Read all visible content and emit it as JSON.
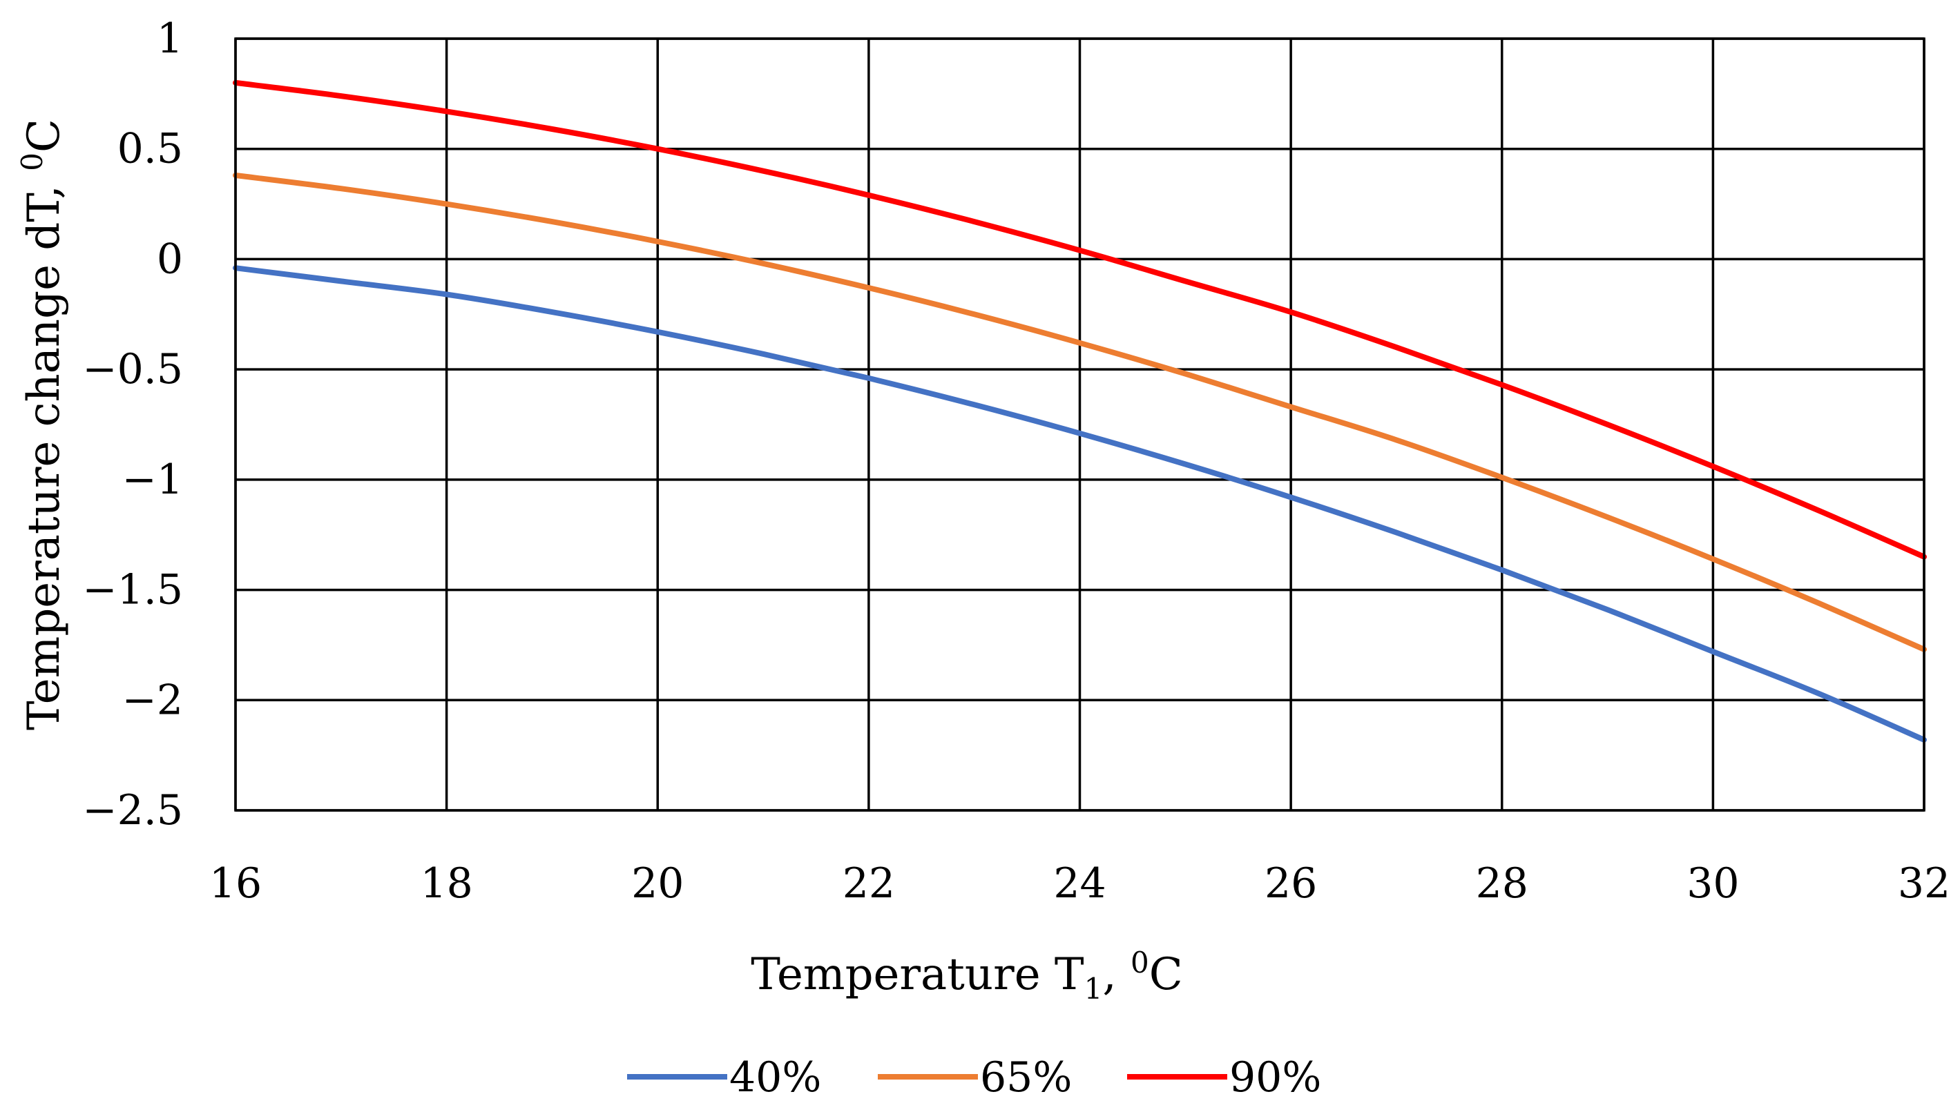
{
  "chart_data": {
    "type": "line",
    "title": "",
    "xlabel": {
      "main": "Temperature T",
      "sub": "1",
      "sep": ", ",
      "sup": "0",
      "unit": "C"
    },
    "ylabel": {
      "main": "Temperature change dT, ",
      "sup": "0",
      "unit": "C"
    },
    "xlim": [
      16,
      32
    ],
    "ylim": [
      -2.5,
      1
    ],
    "x_ticks": [
      16,
      18,
      20,
      22,
      24,
      26,
      28,
      30,
      32
    ],
    "x_tick_labels": [
      "16",
      "18",
      "20",
      "22",
      "24",
      "26",
      "28",
      "30",
      "32"
    ],
    "y_ticks": [
      1,
      0.5,
      0,
      -0.5,
      -1,
      -1.5,
      -2,
      -2.5
    ],
    "y_tick_labels": [
      "1",
      "0.5",
      "0",
      "−0.5",
      "−1",
      "−1.5",
      "−2",
      "−2.5"
    ],
    "grid": true,
    "legend_position": "bottom",
    "x": [
      16,
      17,
      18,
      19,
      20,
      21,
      22,
      23,
      24,
      25,
      26,
      27,
      28,
      29,
      30,
      31,
      32
    ],
    "series": [
      {
        "name": "40%",
        "color": "#4472C4",
        "values": [
          -0.04,
          -0.1,
          -0.16,
          -0.24,
          -0.33,
          -0.43,
          -0.54,
          -0.66,
          -0.79,
          -0.93,
          -1.08,
          -1.24,
          -1.41,
          -1.59,
          -1.78,
          -1.97,
          -2.18
        ]
      },
      {
        "name": "65%",
        "color": "#ED7D31",
        "values": [
          0.38,
          0.32,
          0.25,
          0.17,
          0.08,
          -0.02,
          -0.13,
          -0.25,
          -0.38,
          -0.52,
          -0.67,
          -0.82,
          -0.99,
          -1.17,
          -1.36,
          -1.56,
          -1.77
        ]
      },
      {
        "name": "90%",
        "color": "#FF0000",
        "values": [
          0.8,
          0.74,
          0.67,
          0.59,
          0.5,
          0.4,
          0.29,
          0.17,
          0.04,
          -0.1,
          -0.24,
          -0.4,
          -0.57,
          -0.75,
          -0.94,
          -1.14,
          -1.35
        ]
      }
    ]
  }
}
